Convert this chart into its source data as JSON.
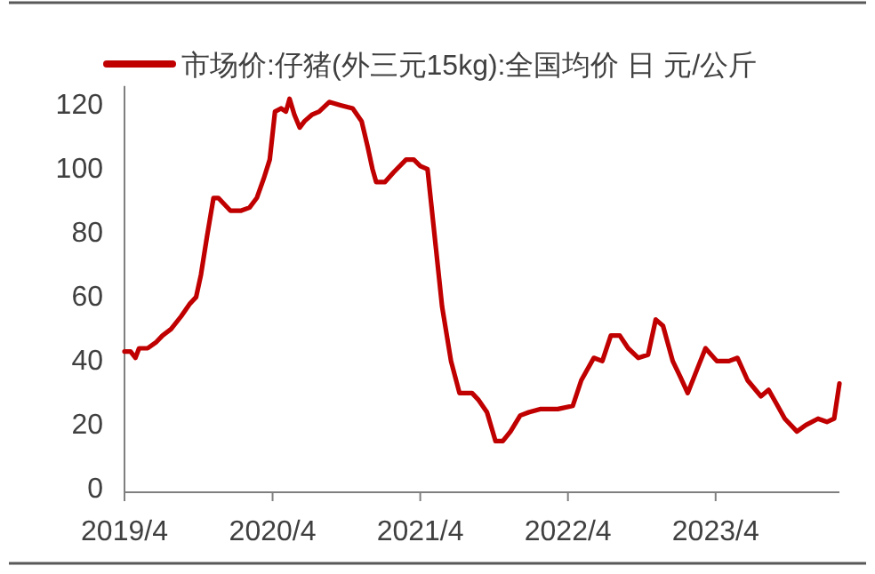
{
  "chart_data": {
    "type": "line",
    "legend": "top",
    "grid": false,
    "x": [
      "2019-04-01",
      "2019-04-16",
      "2019-04-28",
      "2019-05-07",
      "2019-05-28",
      "2019-06-19",
      "2019-07-04",
      "2019-07-25",
      "2019-08-19",
      "2019-09-10",
      "2019-09-25",
      "2019-10-07",
      "2019-10-22",
      "2019-11-07",
      "2019-11-19",
      "2019-12-04",
      "2019-12-19",
      "2020-01-13",
      "2020-02-04",
      "2020-02-22",
      "2020-03-10",
      "2020-03-25",
      "2020-04-07",
      "2020-04-22",
      "2020-05-04",
      "2020-05-13",
      "2020-05-25",
      "2020-06-07",
      "2020-06-19",
      "2020-07-07",
      "2020-07-25",
      "2020-08-19",
      "2020-09-16",
      "2020-10-16",
      "2020-11-07",
      "2020-11-22",
      "2020-12-04",
      "2020-12-13",
      "2021-01-04",
      "2021-01-25",
      "2021-02-25",
      "2021-03-16",
      "2021-04-01",
      "2021-04-19",
      "2021-05-10",
      "2021-05-25",
      "2021-06-16",
      "2021-07-07",
      "2021-08-07",
      "2021-08-22",
      "2021-09-13",
      "2021-10-04",
      "2021-10-22",
      "2021-11-10",
      "2021-12-04",
      "2021-12-25",
      "2022-01-22",
      "2022-03-07",
      "2022-04-13",
      "2022-05-04",
      "2022-06-04",
      "2022-06-25",
      "2022-07-16",
      "2022-08-07",
      "2022-08-28",
      "2022-09-22",
      "2022-10-16",
      "2022-11-04",
      "2022-11-22",
      "2022-12-16",
      "2023-01-04",
      "2023-01-22",
      "2023-02-16",
      "2023-03-07",
      "2023-04-04",
      "2023-05-04",
      "2023-05-25",
      "2023-06-19",
      "2023-07-22",
      "2023-08-10",
      "2023-08-28",
      "2023-09-19",
      "2023-10-19",
      "2023-11-10",
      "2023-12-10",
      "2024-01-01",
      "2024-01-19",
      "2024-02-01"
    ],
    "series": [
      {
        "name": "市场价:仔猪(外三元15kg):全国均价 日 元/公斤",
        "color": "#c00000",
        "values": [
          44,
          44,
          42,
          45,
          45,
          47,
          49,
          51,
          55,
          59,
          61,
          68,
          80,
          92,
          92,
          90,
          88,
          88,
          89,
          92,
          98,
          104,
          119,
          120,
          119,
          123,
          118,
          114,
          116,
          118,
          119,
          122,
          121,
          120,
          116,
          108,
          101,
          97,
          97,
          100,
          104,
          104,
          102,
          101,
          76,
          58,
          41,
          31,
          31,
          29,
          25,
          16,
          16,
          19,
          24,
          25,
          26,
          26,
          27,
          35,
          42,
          41,
          49,
          49,
          45,
          42,
          43,
          54,
          52,
          41,
          36,
          31,
          39,
          45,
          41,
          41,
          42,
          35,
          30,
          32,
          28,
          23,
          19,
          21,
          23,
          22,
          23,
          34
        ]
      }
    ],
    "xlim": [
      "2019-04-01",
      "2024-02-01"
    ],
    "xticks": [
      {
        "value": "2019-04-01",
        "label": "2019/4"
      },
      {
        "value": "2020-04-01",
        "label": "2020/4"
      },
      {
        "value": "2021-04-01",
        "label": "2021/4"
      },
      {
        "value": "2022-04-01",
        "label": "2022/4"
      },
      {
        "value": "2023-04-01",
        "label": "2023/4"
      }
    ],
    "ylim": [
      0,
      127
    ],
    "yticks": [
      0,
      20,
      40,
      60,
      80,
      100,
      120
    ]
  }
}
